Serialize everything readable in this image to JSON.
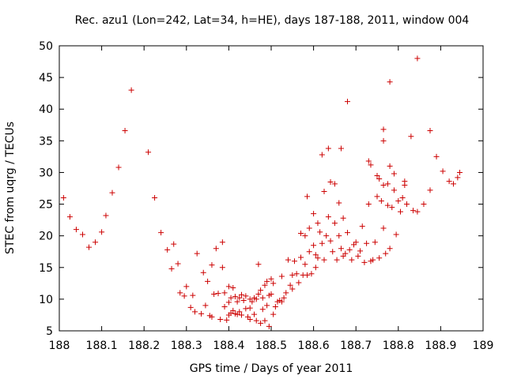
{
  "chart_data": {
    "type": "scatter",
    "title": "Rec. azu1 (Lon=242, Lat=34, h=HE), days 187-188, 2011, window 004",
    "xlabel": "GPS time / Days of year 2011",
    "ylabel": "STEC from uqrg / TECUs",
    "xlim": [
      188,
      189
    ],
    "ylim": [
      5,
      50
    ],
    "xticks": [
      "188",
      "188.1",
      "188.2",
      "188.3",
      "188.4",
      "188.5",
      "188.6",
      "188.7",
      "188.8",
      "188.9",
      "189"
    ],
    "yticks": [
      "5",
      "10",
      "15",
      "20",
      "25",
      "30",
      "35",
      "40",
      "45",
      "50"
    ],
    "marker": "+",
    "color": "#cc0000",
    "series": [
      {
        "name": "STEC",
        "points": [
          [
            188.01,
            26.0
          ],
          [
            188.025,
            23.0
          ],
          [
            188.04,
            21.0
          ],
          [
            188.055,
            20.2
          ],
          [
            188.07,
            18.2
          ],
          [
            188.085,
            19.0
          ],
          [
            188.1,
            20.6
          ],
          [
            188.11,
            23.2
          ],
          [
            188.125,
            26.8
          ],
          [
            188.14,
            30.8
          ],
          [
            188.155,
            36.6
          ],
          [
            188.17,
            43.0
          ],
          [
            188.21,
            33.2
          ],
          [
            188.225,
            26.0
          ],
          [
            188.24,
            20.5
          ],
          [
            188.255,
            17.8
          ],
          [
            188.265,
            14.8
          ],
          [
            188.27,
            18.7
          ],
          [
            188.28,
            15.6
          ],
          [
            188.285,
            11.0
          ],
          [
            188.295,
            10.5
          ],
          [
            188.3,
            12.0
          ],
          [
            188.31,
            8.7
          ],
          [
            188.315,
            10.6
          ],
          [
            188.32,
            8.0
          ],
          [
            188.325,
            17.2
          ],
          [
            188.335,
            7.7
          ],
          [
            188.34,
            14.2
          ],
          [
            188.345,
            9.0
          ],
          [
            188.35,
            12.8
          ],
          [
            188.355,
            7.4
          ],
          [
            188.36,
            15.4
          ],
          [
            188.36,
            7.2
          ],
          [
            188.365,
            10.8
          ],
          [
            188.37,
            18.0
          ],
          [
            188.375,
            10.9
          ],
          [
            188.38,
            6.8
          ],
          [
            188.385,
            19.0
          ],
          [
            188.385,
            15.0
          ],
          [
            188.39,
            11.0
          ],
          [
            188.39,
            8.8
          ],
          [
            188.395,
            6.7
          ],
          [
            188.4,
            12.0
          ],
          [
            188.4,
            9.5
          ],
          [
            188.4,
            7.5
          ],
          [
            188.405,
            10.2
          ],
          [
            188.405,
            7.8
          ],
          [
            188.41,
            11.8
          ],
          [
            188.41,
            8.2
          ],
          [
            188.415,
            10.4
          ],
          [
            188.415,
            7.7
          ],
          [
            188.42,
            9.6
          ],
          [
            188.42,
            7.6
          ],
          [
            188.425,
            10.2
          ],
          [
            188.425,
            8.0
          ],
          [
            188.43,
            10.7
          ],
          [
            188.43,
            7.5
          ],
          [
            188.435,
            9.8
          ],
          [
            188.44,
            10.5
          ],
          [
            188.44,
            8.5
          ],
          [
            188.445,
            7.2
          ],
          [
            188.45,
            10.0
          ],
          [
            188.45,
            8.6
          ],
          [
            188.45,
            6.8
          ],
          [
            188.455,
            9.6
          ],
          [
            188.46,
            10.2
          ],
          [
            188.46,
            7.6
          ],
          [
            188.465,
            10.0
          ],
          [
            188.465,
            6.6
          ],
          [
            188.47,
            15.5
          ],
          [
            188.47,
            10.8
          ],
          [
            188.475,
            6.2
          ],
          [
            188.475,
            11.4
          ],
          [
            188.48,
            10.2
          ],
          [
            188.48,
            8.4
          ],
          [
            188.485,
            12.2
          ],
          [
            188.485,
            6.6
          ],
          [
            188.49,
            12.8
          ],
          [
            188.49,
            9.0
          ],
          [
            188.495,
            5.7
          ],
          [
            188.495,
            10.6
          ],
          [
            188.5,
            13.2
          ],
          [
            188.5,
            10.8
          ],
          [
            188.505,
            7.6
          ],
          [
            188.505,
            12.5
          ],
          [
            188.51,
            8.8
          ],
          [
            188.515,
            9.6
          ],
          [
            188.52,
            9.8
          ],
          [
            188.525,
            13.6
          ],
          [
            188.525,
            9.6
          ],
          [
            188.53,
            10.2
          ],
          [
            188.535,
            11.0
          ],
          [
            188.54,
            16.2
          ],
          [
            188.545,
            12.2
          ],
          [
            188.55,
            13.8
          ],
          [
            188.55,
            11.6
          ],
          [
            188.555,
            16.0
          ],
          [
            188.56,
            14.0
          ],
          [
            188.565,
            12.6
          ],
          [
            188.57,
            20.4
          ],
          [
            188.57,
            16.6
          ],
          [
            188.575,
            13.8
          ],
          [
            188.58,
            20.0
          ],
          [
            188.58,
            15.5
          ],
          [
            188.585,
            26.2
          ],
          [
            188.585,
            13.8
          ],
          [
            188.59,
            21.2
          ],
          [
            188.59,
            17.5
          ],
          [
            188.595,
            14.0
          ],
          [
            188.6,
            23.5
          ],
          [
            188.6,
            18.5
          ],
          [
            188.605,
            17.0
          ],
          [
            188.605,
            15.0
          ],
          [
            188.61,
            22.0
          ],
          [
            188.61,
            16.5
          ],
          [
            188.615,
            20.6
          ],
          [
            188.62,
            32.8
          ],
          [
            188.62,
            18.8
          ],
          [
            188.625,
            27.0
          ],
          [
            188.625,
            16.2
          ],
          [
            188.63,
            20.0
          ],
          [
            188.635,
            33.8
          ],
          [
            188.635,
            23.0
          ],
          [
            188.64,
            28.5
          ],
          [
            188.64,
            19.2
          ],
          [
            188.645,
            17.5
          ],
          [
            188.65,
            28.2
          ],
          [
            188.65,
            22.0
          ],
          [
            188.655,
            16.2
          ],
          [
            188.66,
            25.2
          ],
          [
            188.66,
            20.0
          ],
          [
            188.665,
            33.8
          ],
          [
            188.665,
            18.0
          ],
          [
            188.67,
            22.8
          ],
          [
            188.67,
            16.8
          ],
          [
            188.675,
            17.2
          ],
          [
            188.68,
            41.2
          ],
          [
            188.68,
            20.5
          ],
          [
            188.685,
            17.8
          ],
          [
            188.69,
            16.2
          ],
          [
            188.695,
            18.6
          ],
          [
            188.7,
            19.0
          ],
          [
            188.705,
            16.8
          ],
          [
            188.71,
            17.6
          ],
          [
            188.715,
            21.5
          ],
          [
            188.72,
            15.8
          ],
          [
            188.725,
            18.8
          ],
          [
            188.73,
            25.0
          ],
          [
            188.73,
            31.8
          ],
          [
            188.735,
            31.2
          ],
          [
            188.735,
            16.0
          ],
          [
            188.74,
            16.2
          ],
          [
            188.745,
            19.0
          ],
          [
            188.75,
            29.5
          ],
          [
            188.75,
            26.2
          ],
          [
            188.755,
            29.0
          ],
          [
            188.755,
            16.5
          ],
          [
            188.76,
            25.5
          ],
          [
            188.765,
            36.8
          ],
          [
            188.765,
            35.0
          ],
          [
            188.765,
            28.0
          ],
          [
            188.765,
            21.2
          ],
          [
            188.77,
            17.2
          ],
          [
            188.775,
            24.8
          ],
          [
            188.775,
            28.2
          ],
          [
            188.78,
            44.3
          ],
          [
            188.78,
            31.0
          ],
          [
            188.78,
            18.0
          ],
          [
            188.785,
            24.5
          ],
          [
            188.79,
            29.8
          ],
          [
            188.79,
            27.2
          ],
          [
            188.795,
            20.2
          ],
          [
            188.8,
            25.5
          ],
          [
            188.805,
            23.8
          ],
          [
            188.81,
            26.0
          ],
          [
            188.815,
            28.6
          ],
          [
            188.815,
            28.0
          ],
          [
            188.82,
            25.0
          ],
          [
            188.83,
            35.7
          ],
          [
            188.835,
            24.0
          ],
          [
            188.845,
            48.0
          ],
          [
            188.845,
            23.8
          ],
          [
            188.86,
            25.0
          ],
          [
            188.875,
            36.6
          ],
          [
            188.875,
            27.2
          ],
          [
            188.89,
            32.5
          ],
          [
            188.905,
            30.2
          ],
          [
            188.92,
            28.6
          ],
          [
            188.93,
            28.2
          ],
          [
            188.94,
            29.2
          ],
          [
            188.945,
            30.0
          ]
        ]
      }
    ]
  }
}
